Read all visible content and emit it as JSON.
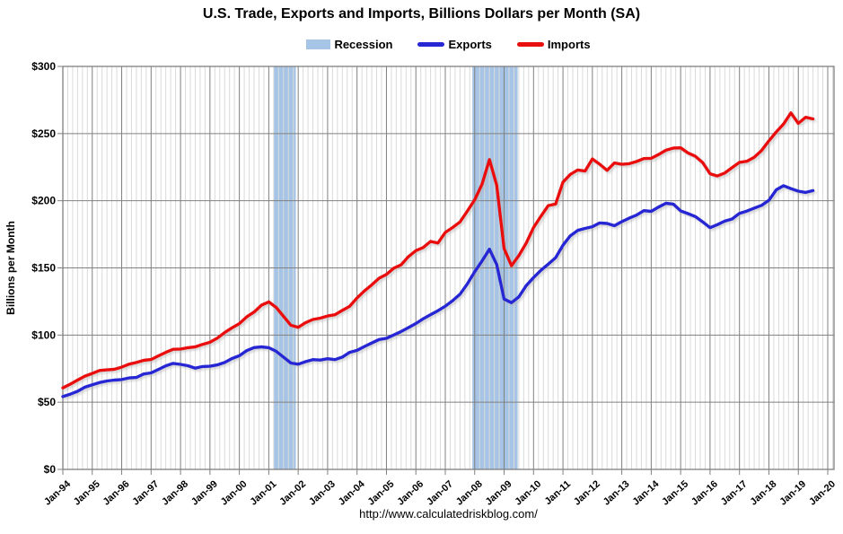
{
  "title": "U.S. Trade, Exports and Imports, Billions Dollars per Month (SA)",
  "footer_url": "http://www.calculatedriskblog.com/",
  "legend": {
    "recession_label": "Recession",
    "exports_label": "Exports",
    "imports_label": "Imports"
  },
  "colors": {
    "exports": "#2727d4",
    "imports": "#e90f0f",
    "recession_band": "#a6c5e6",
    "major_grid": "#808080",
    "minor_grid": "#dadada",
    "border": "#7f7f7f",
    "text": "#000000"
  },
  "y_axis": {
    "label": "Billions per Month",
    "tick_labels": [
      "$0",
      "$50",
      "$100",
      "$150",
      "$200",
      "$250",
      "$300"
    ],
    "min": 0,
    "max": 300,
    "step": 50
  },
  "x_axis": {
    "tick_labels": [
      "Jan-94",
      "Jan-95",
      "Jan-96",
      "Jan-97",
      "Jan-98",
      "Jan-99",
      "Jan-00",
      "Jan-01",
      "Jan-02",
      "Jan-03",
      "Jan-04",
      "Jan-05",
      "Jan-06",
      "Jan-07",
      "Jan-08",
      "Jan-09",
      "Jan-10",
      "Jan-11",
      "Jan-12",
      "Jan-13",
      "Jan-14",
      "Jan-15",
      "Jan-16",
      "Jan-17",
      "Jan-18",
      "Jan-19",
      "Jan-20"
    ],
    "start_year": 1994,
    "end_year": 2020
  },
  "chart_data": {
    "type": "line",
    "title": "U.S. Trade, Exports and Imports, Billions Dollars per Month (SA)",
    "xlabel": "",
    "ylabel": "Billions per Month",
    "ylim": [
      0,
      300
    ],
    "x_range": [
      "Jan-1994",
      "Jan-2020"
    ],
    "sampling": "quarterly (Jan/Apr/Jul/Oct), billions of dollars per month, values read off chart",
    "x_start_year": 1994,
    "x_step_years": 0.25,
    "grid": "major gray lines yearly and every $50; light minor vertical lines every 2 months",
    "legend_position": "top center",
    "series": [
      {
        "name": "Exports",
        "color_key": "exports",
        "values": [
          54.2,
          56.0,
          58.1,
          61.2,
          63.0,
          64.7,
          65.8,
          66.5,
          66.9,
          68.1,
          68.4,
          71.0,
          71.8,
          74.4,
          77.1,
          78.9,
          78.2,
          77.2,
          75.4,
          76.6,
          76.8,
          77.8,
          79.6,
          82.5,
          84.6,
          88.4,
          90.7,
          91.2,
          90.6,
          87.9,
          83.6,
          79.2,
          78.3,
          80.2,
          81.7,
          81.4,
          82.4,
          81.7,
          83.6,
          87.1,
          88.6,
          91.5,
          94.1,
          96.7,
          97.6,
          100.1,
          102.6,
          105.6,
          108.6,
          112.1,
          115.2,
          118.1,
          121.5,
          125.6,
          130.4,
          138.1,
          147.1,
          155.2,
          163.9,
          152.5,
          126.8,
          124.1,
          128.4,
          136.8,
          142.8,
          148.2,
          152.8,
          157.6,
          166.9,
          173.9,
          177.9,
          179.4,
          180.7,
          183.5,
          183.1,
          181.4,
          184.4,
          187.0,
          189.3,
          192.6,
          192.1,
          195.3,
          198.1,
          197.5,
          192.4,
          190.4,
          188.2,
          184.3,
          179.9,
          182.2,
          184.8,
          186.4,
          190.6,
          192.3,
          194.5,
          196.6,
          200.4,
          208.1,
          211.2,
          209.0,
          207.1,
          206.2,
          207.5
        ]
      },
      {
        "name": "Imports",
        "color_key": "imports",
        "values": [
          60.7,
          63.4,
          66.5,
          69.4,
          71.4,
          73.6,
          74.1,
          74.5,
          76.1,
          78.3,
          79.6,
          81.2,
          81.8,
          84.5,
          87.1,
          89.4,
          89.6,
          90.6,
          91.2,
          93.1,
          94.6,
          97.7,
          101.8,
          105.4,
          108.5,
          113.5,
          117.1,
          122.2,
          124.7,
          120.6,
          113.9,
          107.3,
          105.8,
          109.2,
          111.6,
          112.6,
          114.2,
          115.1,
          118.3,
          121.4,
          127.6,
          132.8,
          137.4,
          142.3,
          145.2,
          149.8,
          152.3,
          158.4,
          162.8,
          165.2,
          169.7,
          168.5,
          176.4,
          180.1,
          184.2,
          192.3,
          200.7,
          212.4,
          230.6,
          211.5,
          164.4,
          151.6,
          159.1,
          168.4,
          180.0,
          188.4,
          196.4,
          197.6,
          213.9,
          219.6,
          222.9,
          222.1,
          231.1,
          227.2,
          222.6,
          228.1,
          227.1,
          227.6,
          229.2,
          231.4,
          231.6,
          234.4,
          237.6,
          239.2,
          239.4,
          235.6,
          233.1,
          228.4,
          220.1,
          218.4,
          220.6,
          224.6,
          228.6,
          229.4,
          232.4,
          237.4,
          244.6,
          251.2,
          257.1,
          265.4,
          257.6,
          262.1,
          260.9
        ]
      }
    ],
    "recessions": [
      {
        "start": 2001.17,
        "end": 2001.92
      },
      {
        "start": 2007.92,
        "end": 2009.46
      }
    ]
  }
}
